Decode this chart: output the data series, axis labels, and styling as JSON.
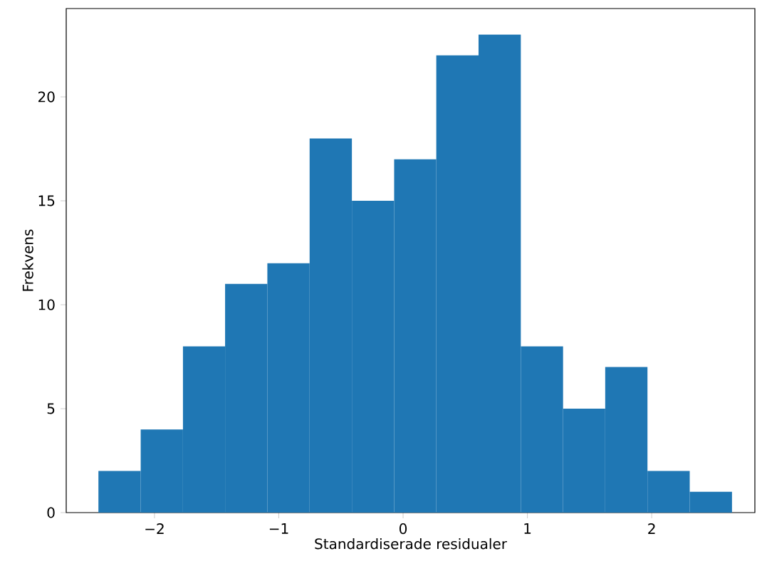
{
  "chart_data": {
    "type": "histogram",
    "xlabel": "Standardiserade residualer",
    "ylabel": "Frekvens",
    "bins": [
      -2.451,
      -2.111,
      -1.771,
      -1.432,
      -1.092,
      -0.752,
      -0.412,
      -0.072,
      0.267,
      0.607,
      0.947,
      1.287,
      1.626,
      1.966,
      2.306,
      2.646
    ],
    "values": [
      2,
      4,
      8,
      11,
      12,
      18,
      15,
      17,
      22,
      23,
      8,
      5,
      7,
      2,
      1
    ],
    "color": "#1f77b4",
    "xlim": [
      -2.71,
      2.83
    ],
    "ylim": [
      0,
      24.25
    ],
    "xticks": [
      {
        "value": -2,
        "label": "−2"
      },
      {
        "value": -1,
        "label": "−1"
      },
      0,
      1,
      2
    ],
    "yticks": [
      0,
      5,
      10,
      15,
      20
    ]
  }
}
